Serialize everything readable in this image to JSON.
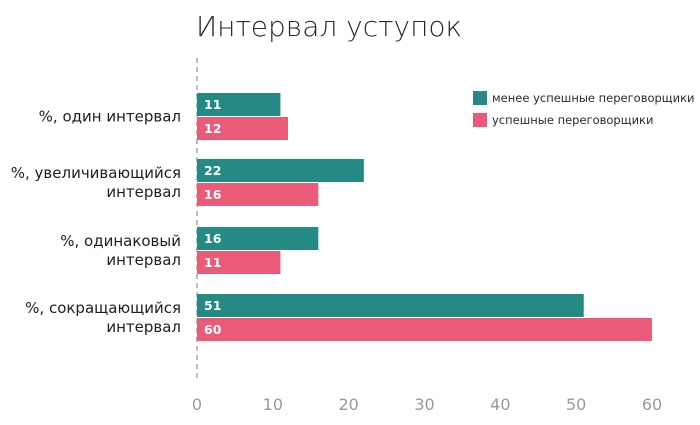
{
  "chart_data": {
    "type": "bar",
    "orientation": "horizontal",
    "title": "Интервал уступок",
    "categories": [
      [
        "%, один интервал"
      ],
      [
        "%, увеличивающийся",
        "интервал"
      ],
      [
        "%, одинаковый",
        "интервал"
      ],
      [
        "%, сокращающийся",
        "интервал"
      ]
    ],
    "series": [
      {
        "name": "менее успешные переговорщики",
        "color": "#248a83",
        "values": [
          11,
          22,
          16,
          51
        ]
      },
      {
        "name": "успешные переговорщики",
        "color": "#ea5b78",
        "values": [
          12,
          16,
          11,
          60
        ]
      }
    ],
    "xlim": [
      0,
      60
    ],
    "xticks": [
      0,
      10,
      20,
      30,
      40,
      50,
      60
    ],
    "grid": false,
    "legend_position": "top-right",
    "data_labels": true
  }
}
